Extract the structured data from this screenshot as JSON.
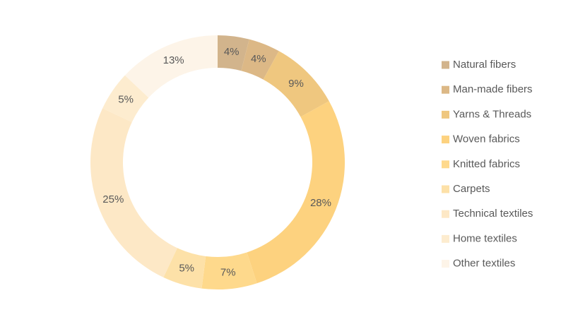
{
  "chart_data": {
    "type": "donut",
    "categories": [
      "Natural fibers",
      "Man-made fibers",
      "Yarns & Threads",
      "Woven fabrics",
      "Knitted fabrics",
      "Carpets",
      "Technical textiles",
      "Home textiles",
      "Other textiles"
    ],
    "values": [
      4,
      4,
      9,
      28,
      7,
      5,
      25,
      5,
      13
    ],
    "value_labels": [
      "4%",
      "4%",
      "9%",
      "28%",
      "7%",
      "5%",
      "25%",
      "5%",
      "13%"
    ],
    "colors": [
      "#d2b48c",
      "#dcb886",
      "#efc77f",
      "#fdd27f",
      "#fed98c",
      "#fde1a8",
      "#fde8c6",
      "#fdeccf",
      "#fdf4e8"
    ],
    "legend": "right"
  }
}
